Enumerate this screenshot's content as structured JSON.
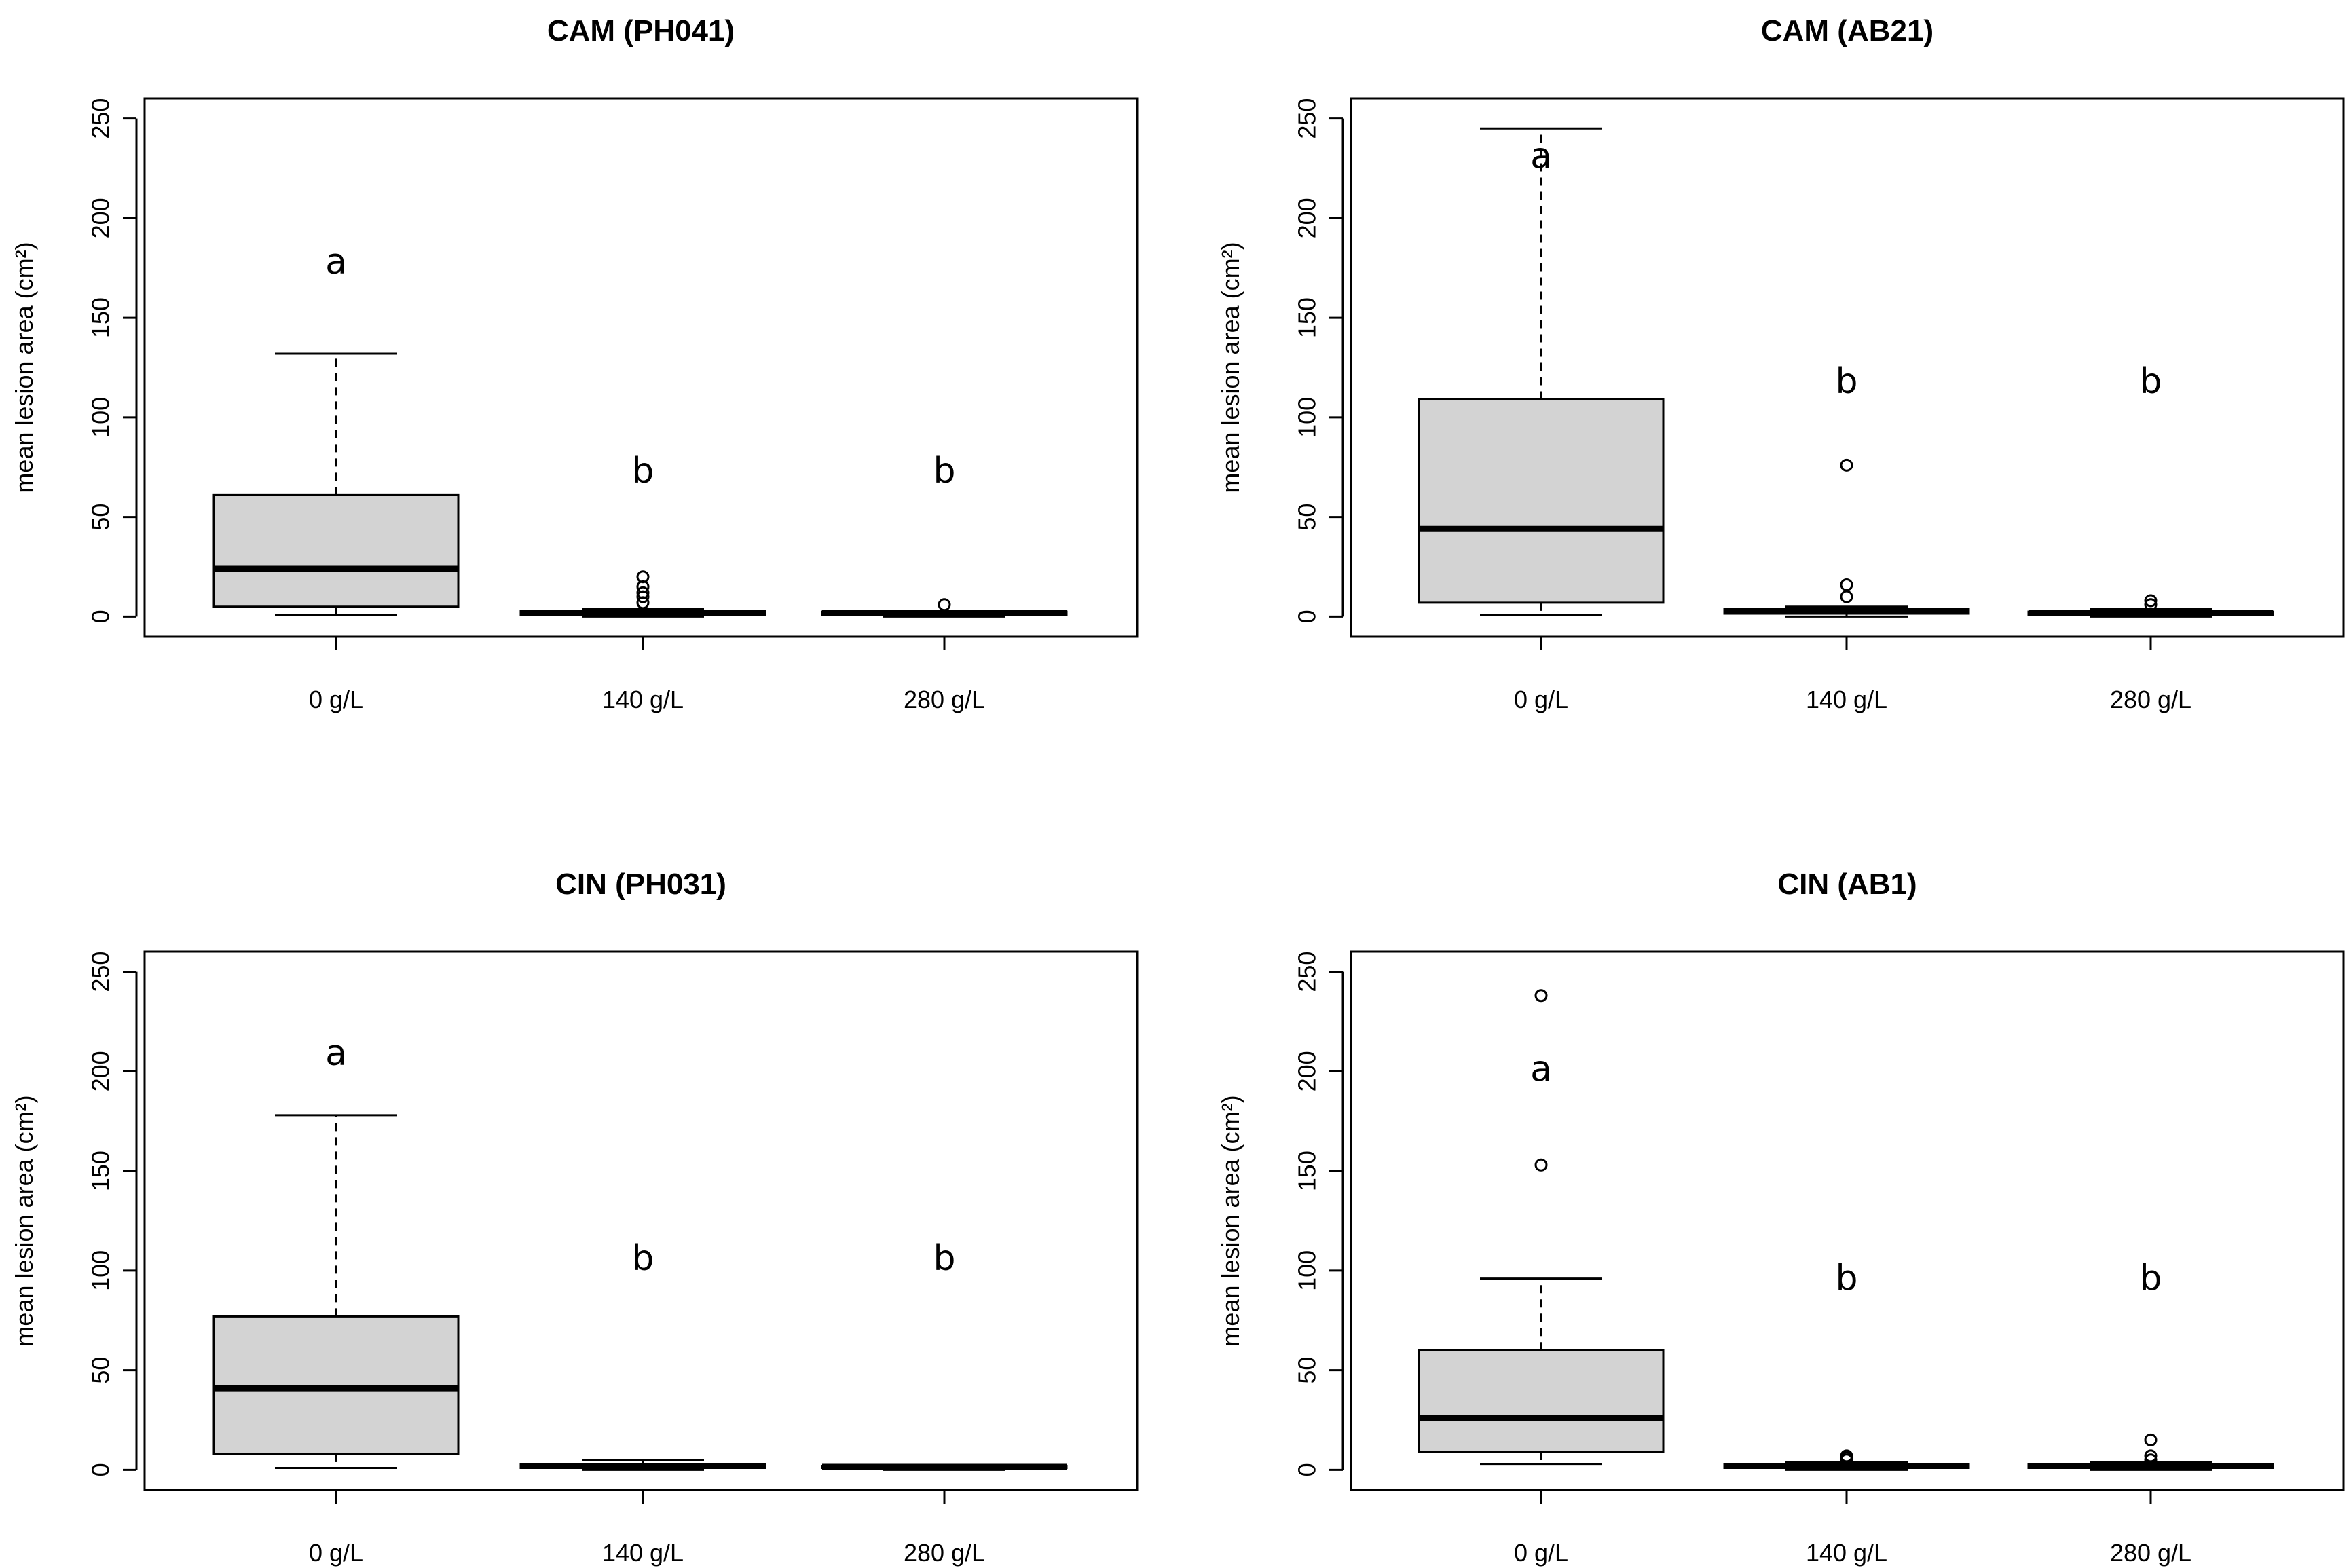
{
  "chart_data": [
    {
      "type": "boxplot",
      "title": "CAM (PH041)",
      "ylabel": "mean lesion area (cm²)",
      "ylim": [
        0,
        250
      ],
      "yticks": [
        0,
        50,
        100,
        150,
        200,
        250
      ],
      "categories": [
        "0 g/L",
        "140 g/L",
        "280 g/L"
      ],
      "boxes": [
        {
          "min": 1,
          "q1": 5,
          "median": 24,
          "q3": 61,
          "max": 132,
          "outliers": [],
          "letter": "a",
          "letter_y": 177
        },
        {
          "min": 0,
          "q1": 1,
          "median": 2,
          "q3": 3,
          "max": 4,
          "outliers": [
            7,
            10,
            12,
            15,
            20
          ],
          "letter": "b",
          "letter_y": 72
        },
        {
          "min": 0,
          "q1": 1,
          "median": 2,
          "q3": 2.5,
          "max": 3,
          "outliers": [
            6
          ],
          "letter": "b",
          "letter_y": 72
        }
      ]
    },
    {
      "type": "boxplot",
      "title": "CAM (AB21)",
      "ylabel": "mean lesion area (cm²)",
      "ylim": [
        0,
        250
      ],
      "yticks": [
        0,
        50,
        100,
        150,
        200,
        250
      ],
      "categories": [
        "0 g/L",
        "140 g/L",
        "280 g/L"
      ],
      "boxes": [
        {
          "min": 1,
          "q1": 7,
          "median": 44,
          "q3": 109,
          "max": 245,
          "outliers": [],
          "letter": "a",
          "letter_y": 230
        },
        {
          "min": 0,
          "q1": 1.5,
          "median": 3,
          "q3": 4,
          "max": 5,
          "outliers": [
            10,
            16,
            76
          ],
          "letter": "b",
          "letter_y": 117
        },
        {
          "min": 0,
          "q1": 1,
          "median": 2,
          "q3": 2.5,
          "max": 4,
          "outliers": [
            6,
            8
          ],
          "letter": "b",
          "letter_y": 117
        }
      ]
    },
    {
      "type": "boxplot",
      "title": "CIN (PH031)",
      "ylabel": "mean lesion area (cm²)",
      "ylim": [
        0,
        250
      ],
      "yticks": [
        0,
        50,
        100,
        150,
        200,
        250
      ],
      "categories": [
        "0 g/L",
        "140 g/L",
        "280 g/L"
      ],
      "boxes": [
        {
          "min": 1,
          "q1": 8,
          "median": 41,
          "q3": 77,
          "max": 178,
          "outliers": [],
          "letter": "a",
          "letter_y": 208
        },
        {
          "min": 0,
          "q1": 1,
          "median": 2,
          "q3": 3,
          "max": 5,
          "outliers": [],
          "letter": "b",
          "letter_y": 105
        },
        {
          "min": 0,
          "q1": 1,
          "median": 1.5,
          "q3": 2,
          "max": 2.5,
          "outliers": [],
          "letter": "b",
          "letter_y": 105
        }
      ]
    },
    {
      "type": "boxplot",
      "title": "CIN (AB1)",
      "ylabel": "mean lesion area (cm²)",
      "ylim": [
        0,
        250
      ],
      "yticks": [
        0,
        50,
        100,
        150,
        200,
        250
      ],
      "categories": [
        "0 g/L",
        "140 g/L",
        "280 g/L"
      ],
      "boxes": [
        {
          "min": 3,
          "q1": 9,
          "median": 26,
          "q3": 60,
          "max": 96,
          "outliers": [
            153,
            238
          ],
          "letter": "a",
          "letter_y": 200
        },
        {
          "min": 0,
          "q1": 1,
          "median": 2,
          "q3": 3,
          "max": 4,
          "outliers": [
            5,
            6,
            7
          ],
          "letter": "b",
          "letter_y": 95
        },
        {
          "min": 0,
          "q1": 1,
          "median": 2,
          "q3": 3,
          "max": 4,
          "outliers": [
            5,
            7,
            15
          ],
          "letter": "b",
          "letter_y": 95
        }
      ]
    }
  ]
}
